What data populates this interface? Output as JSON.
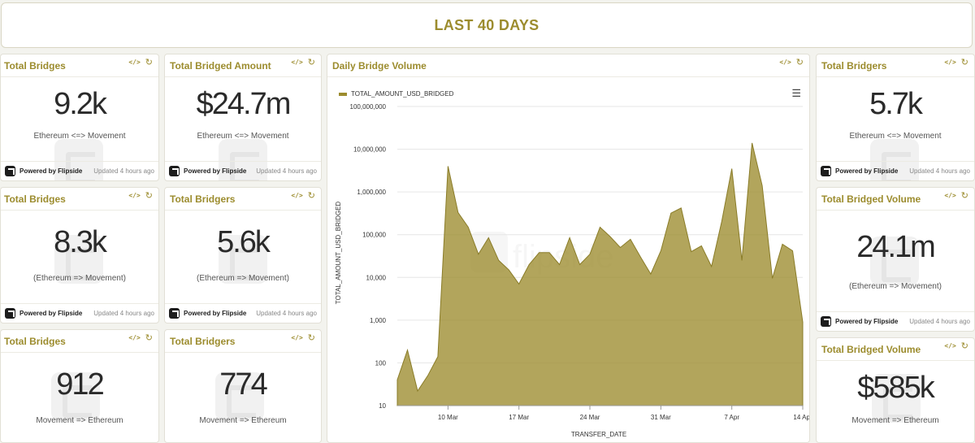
{
  "header": {
    "title": "LAST 40 DAYS"
  },
  "footer": {
    "brand": "Powered by Flipside",
    "updated": "Updated 4 hours ago"
  },
  "cards": {
    "c1": {
      "title": "Total Bridges",
      "value": "9.2k",
      "label": "Ethereum <=> Movement"
    },
    "c2": {
      "title": "Total Bridged Amount",
      "value": "$24.7m",
      "label": "Ethereum <=> Movement"
    },
    "c3": {
      "title": "Total Bridgers",
      "value": "5.7k",
      "label": "Ethereum <=> Movement"
    },
    "c4": {
      "title": "Total Bridges",
      "value": "8.3k",
      "label": "(Ethereum => Movement)"
    },
    "c5": {
      "title": "Total Bridgers",
      "value": "5.6k",
      "label": "(Ethereum => Movement)"
    },
    "c6": {
      "title": "Total Bridged Volume",
      "value": "24.1m",
      "label": "(Ethereum => Movement)"
    },
    "c7": {
      "title": "Total Bridges",
      "value": "912",
      "label": "Movement => Ethereum"
    },
    "c8": {
      "title": "Total Bridgers",
      "value": "774",
      "label": "Movement => Ethereum"
    },
    "c9": {
      "title": "Total Bridged Volume",
      "value": "$585k",
      "label": "Movement => Ethereum"
    }
  },
  "chart_card": {
    "title": "Daily Bridge Volume",
    "watermark": "flipside"
  },
  "chart_data": {
    "type": "area",
    "log_scale": true,
    "color": "#9c8c2e",
    "xlabel": "TRANSFER_DATE",
    "ylabel": "TOTAL_AMOUNT_USD_BRIDGED",
    "legend": "TOTAL_AMOUNT_USD_BRIDGED",
    "ylim": [
      10,
      100000000
    ],
    "y_ticks": [
      "10",
      "100",
      "1,000",
      "10,000",
      "100,000",
      "1,000,000",
      "10,000,000",
      "100,000,000"
    ],
    "x_ticks": [
      "10 Mar",
      "17 Mar",
      "24 Mar",
      "31 Mar",
      "7 Apr",
      "14 Apr"
    ],
    "x_start": "2025-03-05",
    "x_end": "2025-04-14",
    "series": [
      {
        "name": "TOTAL_AMOUNT_USD_BRIDGED",
        "x": [
          "2025-03-05",
          "2025-03-06",
          "2025-03-07",
          "2025-03-08",
          "2025-03-09",
          "2025-03-10",
          "2025-03-11",
          "2025-03-12",
          "2025-03-13",
          "2025-03-14",
          "2025-03-15",
          "2025-03-16",
          "2025-03-17",
          "2025-03-18",
          "2025-03-19",
          "2025-03-20",
          "2025-03-21",
          "2025-03-22",
          "2025-03-23",
          "2025-03-24",
          "2025-03-25",
          "2025-03-26",
          "2025-03-27",
          "2025-03-28",
          "2025-03-29",
          "2025-03-30",
          "2025-03-31",
          "2025-04-01",
          "2025-04-02",
          "2025-04-03",
          "2025-04-04",
          "2025-04-05",
          "2025-04-06",
          "2025-04-07",
          "2025-04-08",
          "2025-04-09",
          "2025-04-10",
          "2025-04-11",
          "2025-04-12",
          "2025-04-13",
          "2025-04-14"
        ],
        "values": [
          40,
          200,
          22,
          50,
          140,
          4000000,
          330000,
          150000,
          35000,
          85000,
          25000,
          15000,
          7000,
          20000,
          38000,
          38000,
          20000,
          85000,
          20000,
          35000,
          150000,
          90000,
          50000,
          78000,
          30000,
          12000,
          42000,
          320000,
          420000,
          40000,
          55000,
          18000,
          200000,
          3500000,
          25000,
          14000000,
          1400000,
          9500,
          60000,
          42000,
          900
        ]
      }
    ]
  }
}
